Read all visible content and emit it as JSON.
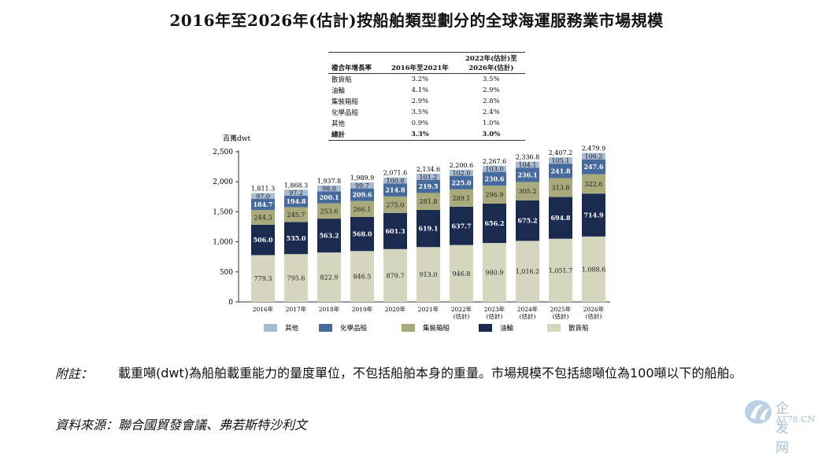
{
  "title": "2016年至2026年(估計)按船舶類型劃分的全球海運服務業市場規模",
  "cagr_table": {
    "headers": [
      "複合年增長率",
      "2016年至2021年",
      "2022年(估計)至\n2026年(估計)"
    ],
    "rows": [
      [
        "散貨船",
        "3.2%",
        "3.5%"
      ],
      [
        "油輪",
        "4.1%",
        "2.9%"
      ],
      [
        "集裝箱船",
        "2.9%",
        "2.8%"
      ],
      [
        "化學品船",
        "3.5%",
        "2.4%"
      ],
      [
        "其他",
        "0.9%",
        "1.0%"
      ],
      [
        "總計",
        "3.3%",
        "3.0%"
      ]
    ]
  },
  "chart_data": {
    "type": "bar",
    "stacked": true,
    "ylabel": "百萬dwt",
    "ylim": [
      0,
      2500
    ],
    "yticks": [
      "0",
      "500",
      "1,000",
      "1,500",
      "2,000",
      "2,500"
    ],
    "categories": [
      "2016年",
      "2017年",
      "2018年",
      "2019年",
      "2020年",
      "2021年",
      "2022年\n(估計)",
      "2023年\n(估計)",
      "2024年\n(估計)",
      "2025年\n(估計)",
      "2026年\n(估計)"
    ],
    "series": [
      {
        "name": "散貨船",
        "color": "#d4d6be",
        "label_color": "#222",
        "values": [
          779.3,
          795.6,
          822.9,
          846.5,
          879.7,
          913.0,
          946.8,
          980.9,
          1016.2,
          1051.7,
          1088.6
        ],
        "labels": [
          "779.3",
          "795.6",
          "822.9",
          "846.5",
          "879.7",
          "913.0",
          "946.8",
          "980.9",
          "1,016.2",
          "1,051.7",
          "1,088.6"
        ]
      },
      {
        "name": "油輪",
        "color": "#1b2a4f",
        "label_color": "#fff",
        "values": [
          506.0,
          535.0,
          563.2,
          568.0,
          601.3,
          619.1,
          637.7,
          656.2,
          675.2,
          694.8,
          714.9
        ],
        "labels": [
          "506.0",
          "535.0",
          "563.2",
          "568.0",
          "601.3",
          "619.1",
          "637.7",
          "656.2",
          "675.2",
          "694.8",
          "714.9"
        ]
      },
      {
        "name": "集裝箱船",
        "color": "#aaab7c",
        "label_color": "#222",
        "values": [
          244.3,
          245.7,
          253.6,
          266.1,
          275.0,
          281.8,
          289.1,
          296.9,
          305.2,
          313.8,
          322.6
        ],
        "labels": [
          "244.3",
          "245.7",
          "253.6",
          "266.1",
          "275.0",
          "281.8",
          "289.1",
          "296.9",
          "305.2",
          "313.8",
          "322.6"
        ]
      },
      {
        "name": "化學品船",
        "color": "#476a9c",
        "label_color": "#fff",
        "values": [
          184.7,
          194.8,
          200.1,
          209.6,
          214.8,
          219.5,
          225.0,
          230.6,
          236.1,
          241.8,
          247.6
        ],
        "labels": [
          "184.7",
          "194.8",
          "200.1",
          "209.6",
          "214.8",
          "219.5",
          "225.0",
          "230.6",
          "236.1",
          "241.8",
          "247.6"
        ]
      },
      {
        "name": "其他",
        "color": "#a9bcd3",
        "label_color": "#222",
        "values": [
          97.0,
          97.2,
          98.0,
          99.7,
          100.8,
          101.2,
          102.0,
          103.0,
          104.1,
          105.1,
          106.2
        ],
        "labels": [
          "97.0",
          "97.2",
          "98.0",
          "99.7",
          "100.8",
          "101.2",
          "102.0",
          "103.0",
          "104.1",
          "105.1",
          "106.2"
        ]
      }
    ],
    "totals": [
      "1,811.3",
      "1,868.3",
      "1,937.8",
      "1,989.9",
      "2,071.6",
      "2,134.6",
      "2,200.6",
      "2,267.6",
      "2,336.8",
      "2,407.2",
      "2,479.9"
    ],
    "legend": [
      "其他",
      "化學品船",
      "集裝箱船",
      "油輪",
      "散貨船"
    ],
    "legend_position": "bottom",
    "grid": false
  },
  "note": {
    "label": "附註：",
    "text": "載重噸(dwt)為船舶載重能力的量度單位，不包括船舶本身的重量。市場規模不包括總噸位為100噸以下的船舶。"
  },
  "source": "資料來源：聯合國貿發會議、弗若斯特沙利文",
  "watermark": {
    "cn": "企发网",
    "en": "AT78.CN"
  }
}
